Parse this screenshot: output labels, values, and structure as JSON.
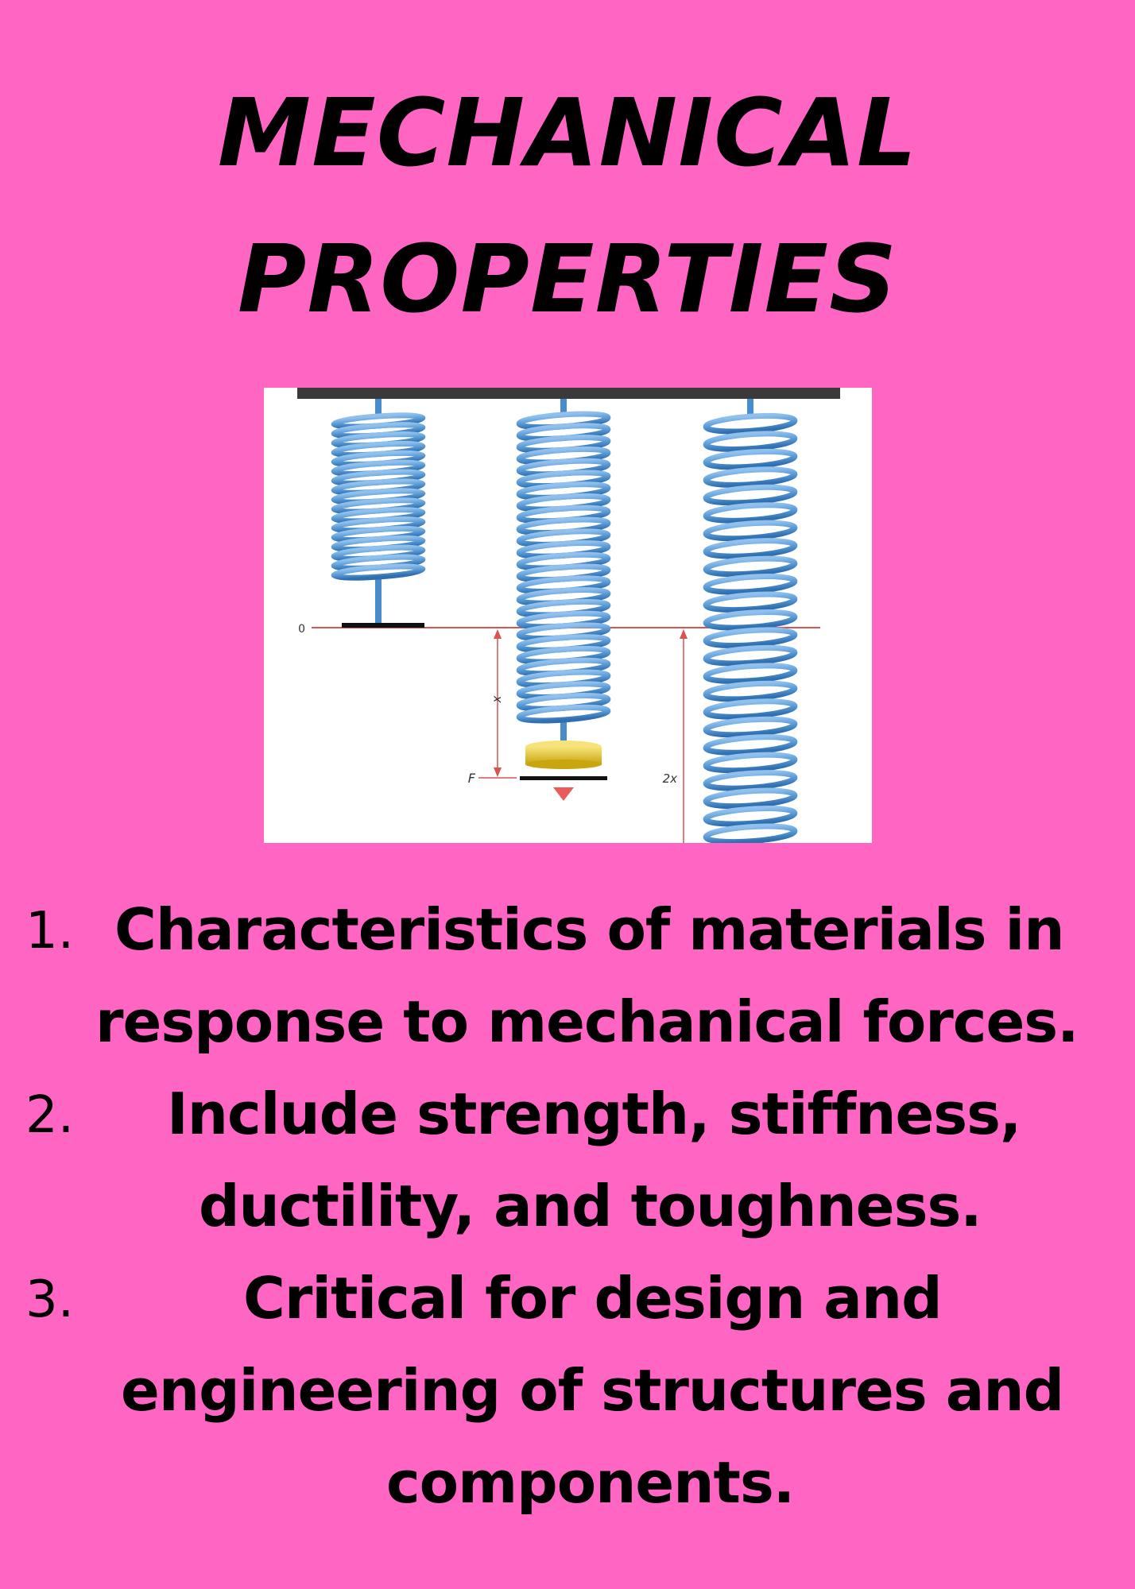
{
  "title": {
    "line1": "MECHANICAL",
    "line2": "PROPERTIES"
  },
  "figure": {
    "zero_label": "0",
    "x_label": "x",
    "force_label": "F",
    "double_label": "2x"
  },
  "items": [
    {
      "number": "1.",
      "lines": [
        "Characteristics of materials in",
        "response to mechanical forces."
      ]
    },
    {
      "number": "2.",
      "lines": [
        "Include strength, stiffness,",
        "ductility, and toughness."
      ]
    },
    {
      "number": "3.",
      "lines": [
        "Critical for design and",
        "engineering of structures and",
        "components."
      ]
    }
  ],
  "colors": {
    "background": "#ff66c4",
    "spring": "#5b9bd5",
    "spring_dark": "#2f6fb0",
    "reference_line": "#d9534f",
    "weight": "#e6c619"
  }
}
